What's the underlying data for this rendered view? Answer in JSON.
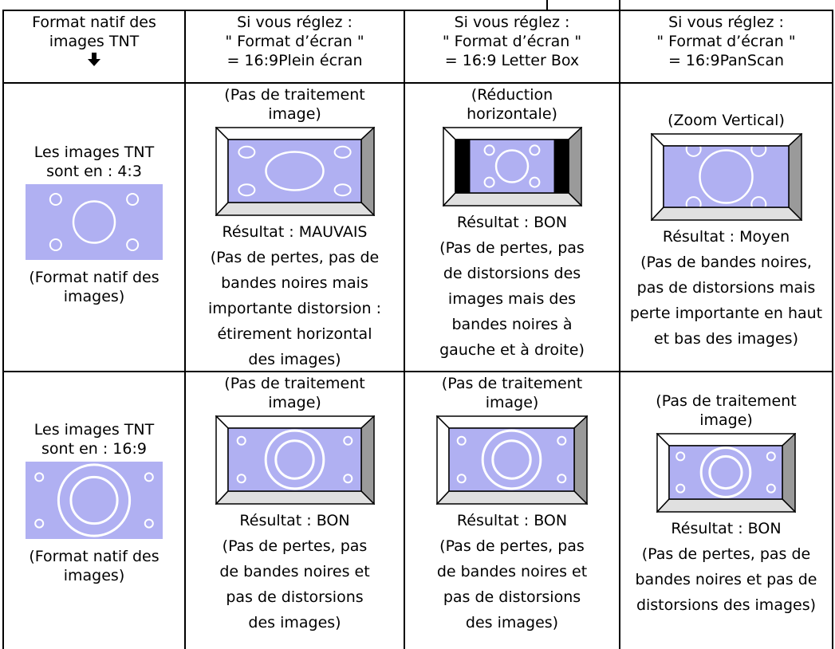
{
  "table": {
    "header": [
      [
        "Format natif des",
        "images TNT"
      ],
      [
        "Si vous réglez :",
        "\" Format d’écran \"",
        "= 16:9Plein écran"
      ],
      [
        "Si vous réglez :",
        "\" Format d’écran \"",
        "= 16:9 Letter Box"
      ],
      [
        "Si vous réglez :",
        "\" Format d’écran \"",
        "= 16:9PanScan"
      ]
    ],
    "rows": [
      {
        "label": [
          "Les images TNT",
          "sont en : 4:3"
        ],
        "note": [
          "(Format natif des",
          "images)"
        ],
        "cells": [
          {
            "caption": [
              "(Pas de traitement",
              "image)"
            ],
            "result": [
              "Résultat : MAUVAIS",
              "(Pas de pertes, pas de",
              "bandes noires mais",
              "importante distorsion :",
              "étirement horizontal",
              "des images)"
            ]
          },
          {
            "caption": [
              "(Réduction",
              "horizontale)"
            ],
            "result": [
              "Résultat : BON",
              "(Pas de pertes, pas",
              "de distorsions des",
              "images mais des",
              "bandes noires à",
              "gauche et à droite)"
            ]
          },
          {
            "caption": [
              "(Zoom Vertical)"
            ],
            "result": [
              "Résultat : Moyen",
              "(Pas de bandes noires,",
              "pas de distorsions mais",
              "perte importante en haut",
              "et bas des images)"
            ]
          }
        ]
      },
      {
        "label": [
          "Les images TNT",
          "sont en : 16:9"
        ],
        "note": [
          "(Format natif des",
          "images)"
        ],
        "cells": [
          {
            "caption": [
              "(Pas de traitement",
              "image)"
            ],
            "result": [
              "Résultat : BON",
              "(Pas de pertes, pas",
              "de bandes noires et",
              "pas de distorsions",
              "des images)"
            ]
          },
          {
            "caption": [
              "(Pas de traitement",
              "image)"
            ],
            "result": [
              "Résultat : BON",
              "(Pas de pertes, pas",
              "de bandes noires et",
              "pas de distorsions",
              "des images)"
            ]
          },
          {
            "caption": [
              "(Pas de traitement",
              "image)"
            ],
            "result": [
              "Résultat : BON",
              "(Pas de pertes, pas de",
              "bandes noires et pas de",
              "distorsions des images)"
            ]
          }
        ]
      }
    ]
  }
}
